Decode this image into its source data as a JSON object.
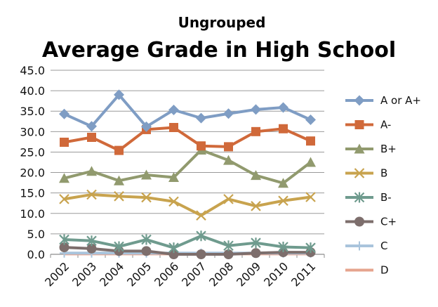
{
  "chart_data": {
    "type": "line",
    "subtitle": "Ungrouped",
    "title": "Average Grade in High School",
    "xlabel": "",
    "ylabel": "",
    "ylim": [
      0,
      45
    ],
    "y_ticks": [
      "0.0",
      "5.0",
      "10.0",
      "15.0",
      "20.0",
      "25.0",
      "30.0",
      "35.0",
      "40.0",
      "45.0"
    ],
    "y_tick_values": [
      0,
      5,
      10,
      15,
      20,
      25,
      30,
      35,
      40,
      45
    ],
    "grid": true,
    "legend_position": "right",
    "categories": [
      "2002",
      "2003",
      "2004",
      "2005",
      "2006",
      "2007",
      "2008",
      "2009",
      "2010",
      "2011"
    ],
    "series": [
      {
        "name": "A or A+",
        "color": "#7f9dc4",
        "marker": "diamond",
        "values": [
          34.3,
          31.3,
          39.0,
          31.2,
          35.3,
          33.3,
          34.4,
          35.4,
          35.9,
          32.9
        ]
      },
      {
        "name": "A-",
        "color": "#d0693a",
        "marker": "square",
        "values": [
          27.4,
          28.6,
          25.4,
          30.5,
          31.0,
          26.5,
          26.3,
          30.0,
          30.7,
          27.7
        ]
      },
      {
        "name": "B+",
        "color": "#919a6e",
        "marker": "triangle",
        "values": [
          18.6,
          20.3,
          18.0,
          19.4,
          18.8,
          25.5,
          23.0,
          19.3,
          17.4,
          22.5
        ]
      },
      {
        "name": "B",
        "color": "#c8a34e",
        "marker": "x",
        "values": [
          13.5,
          14.6,
          14.2,
          13.9,
          12.9,
          9.5,
          13.5,
          11.8,
          13.1,
          14.0
        ]
      },
      {
        "name": "B-",
        "color": "#6f9b8e",
        "marker": "star",
        "values": [
          3.6,
          3.3,
          1.9,
          3.6,
          1.6,
          4.5,
          2.1,
          2.8,
          1.8,
          1.6
        ]
      },
      {
        "name": "C+",
        "color": "#7d6e6c",
        "marker": "circle",
        "values": [
          1.7,
          1.4,
          0.8,
          0.8,
          0.0,
          0.0,
          0.0,
          0.3,
          0.5,
          0.5
        ]
      },
      {
        "name": "C",
        "color": "#a9c4dc",
        "marker": "plus",
        "values": [
          0.3,
          0.3,
          0.3,
          0.3,
          0.3,
          0.3,
          0.3,
          0.3,
          0.3,
          0.3
        ]
      },
      {
        "name": "D",
        "color": "#e6a48e",
        "marker": "none",
        "values": [
          0.1,
          0.1,
          0.1,
          0.1,
          0.1,
          0.1,
          0.1,
          0.1,
          0.1,
          0.1
        ]
      }
    ]
  }
}
